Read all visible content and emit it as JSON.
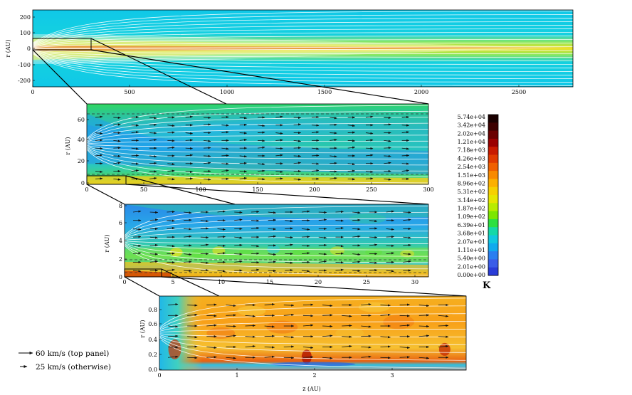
{
  "panels": [
    {
      "id": "p1",
      "ylabel": "r (AU)",
      "xlabel": "",
      "yticks": [
        "200",
        "100",
        "0",
        "-100",
        "-200"
      ],
      "xticks": [
        "0",
        "500",
        "1000",
        "1500",
        "2000",
        "2500"
      ]
    },
    {
      "id": "p2",
      "ylabel": "r (AU)",
      "xlabel": "",
      "yticks": [
        "60",
        "40",
        "20",
        "0"
      ],
      "xticks": [
        "0",
        "50",
        "100",
        "150",
        "200",
        "250",
        "300"
      ]
    },
    {
      "id": "p3",
      "ylabel": "r (AU)",
      "xlabel": "",
      "yticks": [
        "8",
        "6",
        "4",
        "2",
        "0"
      ],
      "xticks": [
        "0",
        "5",
        "10",
        "15",
        "20",
        "25",
        "30"
      ]
    },
    {
      "id": "p4",
      "ylabel": "r (AU)",
      "xlabel": "z (AU)",
      "yticks": [
        "0.8",
        "0.6",
        "0.4",
        "0.2",
        "0.0"
      ],
      "xticks": [
        "0",
        "1",
        "2",
        "3"
      ]
    }
  ],
  "colorbar": {
    "unit": "K",
    "labels": [
      "5.74e+04",
      "3.42e+04",
      "2.02e+04",
      "1.21e+04",
      "7.18e+03",
      "4.26e+03",
      "2.54e+03",
      "1.51e+03",
      "8.96e+02",
      "5.31e+02",
      "3.14e+02",
      "1.87e+02",
      "1.09e+02",
      "6.39e+01",
      "3.68e+01",
      "2.07e+01",
      "1.11e+01",
      "5.40e+00",
      "2.01e+00",
      "0.00e+00"
    ],
    "colors": [
      "#1a0000",
      "#3d0000",
      "#6a0000",
      "#9a0000",
      "#c81a00",
      "#e03a00",
      "#f06000",
      "#f88a00",
      "#fcb000",
      "#f6d000",
      "#e6e600",
      "#b8ec00",
      "#7ce600",
      "#2ce040",
      "#14d8a8",
      "#10c8e0",
      "#10aaee",
      "#2a7ef0",
      "#3a5ce8",
      "#2a3cd8"
    ]
  },
  "legend": {
    "items": [
      "60 km/s (top panel)",
      "25 km/s (otherwise)"
    ]
  }
}
